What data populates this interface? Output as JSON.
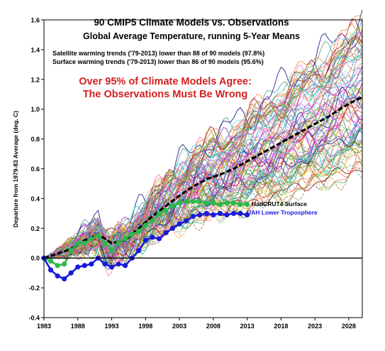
{
  "chart_data": {
    "type": "line",
    "title": "90 CMIP5 Climate Models vs. Observations",
    "subtitle": "Global Average Temperature, running 5-Year Means",
    "notes": [
      "Satellite warming trends ('79-2013) lower than 88 of 90 models (97.8%)",
      "Surface warming trends ('79-2013) lower than 86 of 90 models (95.6%)"
    ],
    "headline": [
      "Over 95% of Climate Models Agree:",
      "The Observations Must Be Wrong"
    ],
    "ylabel": "Departure from 1979-83 Average (deg. C)",
    "xlabel": "",
    "xlim": [
      1983,
      2030
    ],
    "ylim": [
      -0.4,
      1.6
    ],
    "xticks": [
      1983,
      1988,
      1993,
      1998,
      2003,
      2008,
      2013,
      2018,
      2023,
      2028
    ],
    "xtick_labels": [
      "1983",
      "1988",
      "1993",
      "1998",
      "2003",
      "2008",
      "2013",
      "2018",
      "2023",
      "2028"
    ],
    "yticks": [
      -0.4,
      -0.2,
      0.0,
      0.2,
      0.4,
      0.6,
      0.8,
      1.0,
      1.2,
      1.4,
      1.6
    ],
    "ytick_labels": [
      "-0.4",
      "-0.2",
      "0.0",
      "0.2",
      "0.4",
      "0.6",
      "0.8",
      "1.0",
      "1.2",
      "1.4",
      "1.6"
    ],
    "grid": false,
    "model_ensemble": {
      "count": 90,
      "x_start": 1983,
      "x_end": 2030,
      "approx_start_mean": 0.0,
      "approx_end_mean": 1.07,
      "end_range": [
        0.55,
        1.6
      ]
    },
    "multi_model_mean": {
      "color": "#000000",
      "x": [
        1983,
        1985,
        1987,
        1989,
        1991,
        1993,
        1995,
        1997,
        1999,
        2001,
        2003,
        2005,
        2007,
        2009,
        2011,
        2013,
        2015,
        2017,
        2019,
        2021,
        2023,
        2025,
        2027,
        2029,
        2030
      ],
      "y": [
        0.0,
        0.03,
        0.06,
        0.12,
        0.16,
        0.1,
        0.12,
        0.2,
        0.28,
        0.35,
        0.42,
        0.48,
        0.53,
        0.56,
        0.6,
        0.65,
        0.7,
        0.75,
        0.8,
        0.85,
        0.9,
        0.95,
        1.01,
        1.06,
        1.08
      ]
    },
    "series": [
      {
        "name": "HadCRUT4 Surface",
        "color": "#2db84a",
        "x": [
          1983,
          1984,
          1985,
          1986,
          1987,
          1988,
          1989,
          1990,
          1991,
          1992,
          1993,
          1994,
          1995,
          1996,
          1997,
          1998,
          1999,
          2000,
          2001,
          2002,
          2003,
          2004,
          2005,
          2006,
          2007,
          2008,
          2009,
          2010,
          2011,
          2012,
          2013
        ],
        "y": [
          0.0,
          -0.02,
          -0.05,
          -0.04,
          0.05,
          0.1,
          0.1,
          0.13,
          0.15,
          0.1,
          0.05,
          0.1,
          0.13,
          0.16,
          0.18,
          0.22,
          0.25,
          0.3,
          0.32,
          0.35,
          0.37,
          0.38,
          0.38,
          0.38,
          0.37,
          0.37,
          0.36,
          0.37,
          0.37,
          0.36,
          0.36
        ]
      },
      {
        "name": "UAH Lower Troposphere",
        "color": "#1a1adc",
        "x": [
          1983,
          1984,
          1985,
          1986,
          1987,
          1988,
          1989,
          1990,
          1991,
          1992,
          1993,
          1994,
          1995,
          1996,
          1997,
          1998,
          1999,
          2000,
          2001,
          2002,
          2003,
          2004,
          2005,
          2006,
          2007,
          2008,
          2009,
          2010,
          2011,
          2012,
          2013
        ],
        "y": [
          0.0,
          -0.08,
          -0.12,
          -0.14,
          -0.1,
          -0.06,
          -0.05,
          -0.04,
          0.0,
          -0.04,
          -0.06,
          -0.04,
          -0.05,
          0.0,
          0.05,
          0.12,
          0.14,
          0.13,
          0.17,
          0.2,
          0.23,
          0.25,
          0.28,
          0.29,
          0.3,
          0.29,
          0.3,
          0.29,
          0.3,
          0.3,
          0.29
        ]
      }
    ],
    "annotations": [
      "HadCRUT4 Surface",
      "UAH Lower Troposphere"
    ],
    "colors": {
      "headline": "#d42020",
      "hadcrut": "#2db84a",
      "uah": "#1a1adc"
    }
  }
}
